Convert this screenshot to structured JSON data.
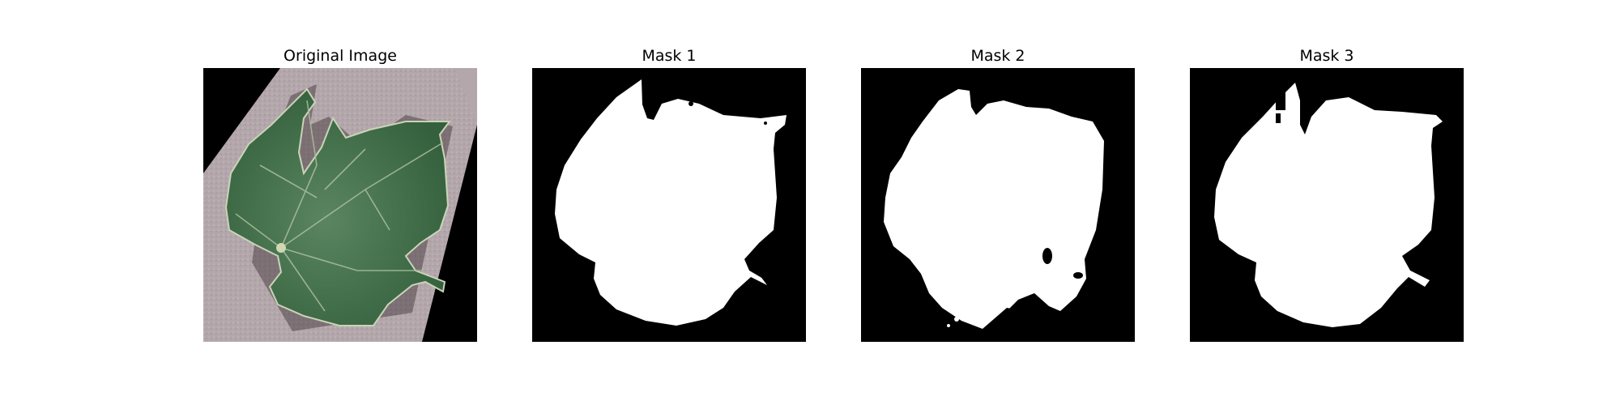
{
  "panels": [
    {
      "title": "Original Image",
      "content": "rotated grape leaf photo on grey background"
    },
    {
      "title": "Mask 1",
      "content": "binary segmentation mask"
    },
    {
      "title": "Mask 2",
      "content": "binary segmentation mask"
    },
    {
      "title": "Mask 3",
      "content": "binary segmentation mask"
    }
  ],
  "colors": {
    "background": "#ffffff",
    "mask_background": "#000000",
    "mask_foreground": "#ffffff",
    "leaf": "#3f6b45",
    "photo_surface": "#b2a6aa"
  }
}
